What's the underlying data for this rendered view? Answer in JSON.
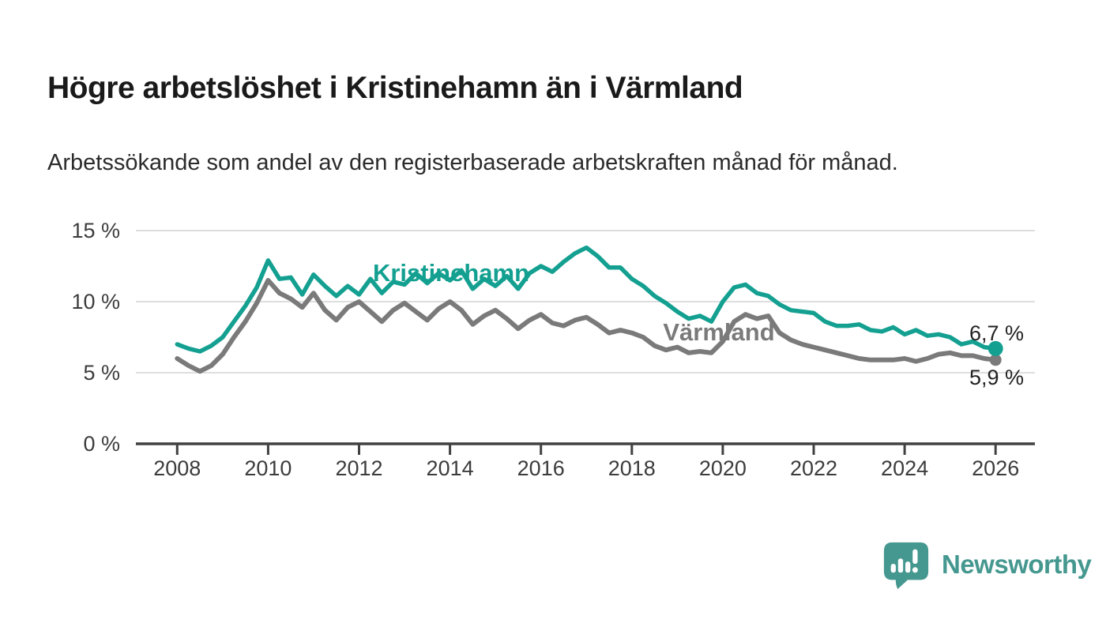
{
  "header": {
    "title": "Högre arbetslöshet i Kristinehamn än i Värmland",
    "subtitle": "Arbetssökande som andel av den registerbaserade arbetskraften månad för månad."
  },
  "chart_data": {
    "type": "line",
    "title": "Högre arbetslöshet i Kristinehamn än i Värmland",
    "subtitle": "Arbetssökande som andel av den registerbaserade arbetskraften månad för månad.",
    "x_unit": "year",
    "y_unit": "percent",
    "xlim": [
      2007.1,
      2026.9
    ],
    "ylim": [
      0,
      16.2
    ],
    "grid": "horizontal",
    "x": [
      2008.0,
      2008.25,
      2008.5,
      2008.75,
      2009.0,
      2009.25,
      2009.5,
      2009.75,
      2010.0,
      2010.25,
      2010.5,
      2010.75,
      2011.0,
      2011.25,
      2011.5,
      2011.75,
      2012.0,
      2012.25,
      2012.5,
      2012.75,
      2013.0,
      2013.25,
      2013.5,
      2013.75,
      2014.0,
      2014.25,
      2014.5,
      2014.75,
      2015.0,
      2015.25,
      2015.5,
      2015.75,
      2016.0,
      2016.25,
      2016.5,
      2016.75,
      2017.0,
      2017.25,
      2017.5,
      2017.75,
      2018.0,
      2018.25,
      2018.5,
      2018.75,
      2019.0,
      2019.25,
      2019.5,
      2019.75,
      2020.0,
      2020.25,
      2020.5,
      2020.75,
      2021.0,
      2021.25,
      2021.5,
      2021.75,
      2022.0,
      2022.25,
      2022.5,
      2022.75,
      2023.0,
      2023.25,
      2023.5,
      2023.75,
      2024.0,
      2024.25,
      2024.5,
      2024.75,
      2025.0,
      2025.25,
      2025.5,
      2025.75,
      2026.0
    ],
    "series": [
      {
        "name": "Värmland",
        "color": "#7a7a7a",
        "end_label": "5,9 %",
        "end_value": 5.9,
        "values": [
          6.0,
          5.5,
          5.1,
          5.5,
          6.3,
          7.5,
          8.6,
          9.9,
          11.5,
          10.6,
          10.2,
          9.6,
          10.6,
          9.4,
          8.7,
          9.6,
          10.0,
          9.3,
          8.6,
          9.4,
          9.9,
          9.3,
          8.7,
          9.5,
          10.0,
          9.4,
          8.4,
          9.0,
          9.4,
          8.8,
          8.1,
          8.7,
          9.1,
          8.5,
          8.3,
          8.7,
          8.9,
          8.4,
          7.8,
          8.0,
          7.8,
          7.5,
          6.9,
          6.6,
          6.8,
          6.4,
          6.5,
          6.4,
          7.2,
          8.6,
          9.1,
          8.8,
          9.0,
          7.8,
          7.3,
          7.0,
          6.8,
          6.6,
          6.4,
          6.2,
          6.0,
          5.9,
          5.9,
          5.9,
          6.0,
          5.8,
          6.0,
          6.3,
          6.4,
          6.2,
          6.2,
          6.0,
          5.9
        ]
      },
      {
        "name": "Kristinehamn",
        "color": "#14a091",
        "end_label": "6,7 %",
        "end_value": 6.7,
        "values": [
          7.0,
          6.7,
          6.5,
          6.9,
          7.5,
          8.6,
          9.7,
          11.0,
          12.9,
          11.6,
          11.7,
          10.5,
          11.9,
          11.1,
          10.4,
          11.1,
          10.5,
          11.6,
          10.6,
          11.4,
          11.2,
          12.0,
          11.3,
          12.0,
          11.5,
          12.2,
          10.9,
          11.6,
          11.1,
          11.8,
          10.9,
          12.0,
          12.5,
          12.1,
          12.8,
          13.4,
          13.8,
          13.2,
          12.4,
          12.4,
          11.6,
          11.1,
          10.4,
          9.9,
          9.3,
          8.8,
          9.0,
          8.6,
          10.0,
          11.0,
          11.2,
          10.6,
          10.4,
          9.8,
          9.4,
          9.3,
          9.2,
          8.6,
          8.3,
          8.3,
          8.4,
          8.0,
          7.9,
          8.2,
          7.7,
          8.0,
          7.6,
          7.7,
          7.5,
          7.0,
          7.2,
          6.8,
          6.7
        ]
      }
    ],
    "y_ticks": [
      {
        "value": 0,
        "label": "0 %"
      },
      {
        "value": 5,
        "label": "5 %"
      },
      {
        "value": 10,
        "label": "10 %"
      },
      {
        "value": 15,
        "label": "15 %"
      }
    ],
    "x_ticks": [
      {
        "value": 2008,
        "label": "2008"
      },
      {
        "value": 2010,
        "label": "2010"
      },
      {
        "value": 2012,
        "label": "2012"
      },
      {
        "value": 2014,
        "label": "2014"
      },
      {
        "value": 2016,
        "label": "2016"
      },
      {
        "value": 2018,
        "label": "2018"
      },
      {
        "value": 2020,
        "label": "2020"
      },
      {
        "value": 2022,
        "label": "2022"
      },
      {
        "value": 2024,
        "label": "2024"
      },
      {
        "value": 2026,
        "label": "2026"
      }
    ],
    "legend_position": "inline-labels"
  },
  "colors": {
    "accent_teal": "#14a091",
    "series_gray": "#7a7a7a",
    "gridline": "#dedede",
    "axis": "#414141",
    "text_dark": "#1a1a1a",
    "brand_teal": "#45988f"
  },
  "footer": {
    "brand": "Newsworthy",
    "logo_icon": "newsworthy-bubble-barchart-icon"
  }
}
